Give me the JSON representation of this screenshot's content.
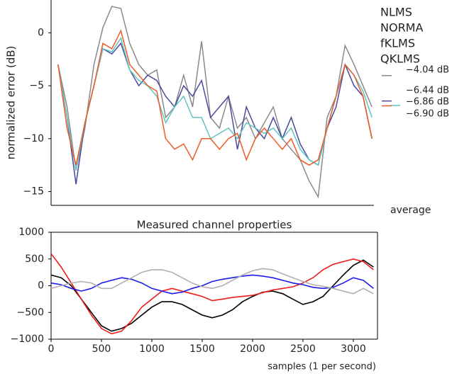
{
  "chart_data": [
    {
      "type": "line",
      "ylabel": "normalized error (dB)",
      "average_title": "average",
      "x": [
        70,
        160,
        250,
        340,
        430,
        520,
        610,
        700,
        790,
        880,
        970,
        1060,
        1150,
        1240,
        1330,
        1420,
        1510,
        1600,
        1690,
        1780,
        1870,
        1960,
        2050,
        2140,
        2230,
        2320,
        2410,
        2500,
        2590,
        2680,
        2770,
        2860,
        2950,
        3040,
        3130,
        3220
      ],
      "xlim": [
        0,
        3240
      ],
      "ylim": [
        -16.3,
        3.1
      ],
      "yticks": [
        0,
        {
          "value": -5,
          "label": "−5"
        },
        {
          "value": -10,
          "label": "−10"
        },
        {
          "value": -15,
          "label": "−15"
        }
      ],
      "series": [
        {
          "name": "NLMS",
          "color": "#8a8a8a",
          "average": -4.04,
          "average_label": "−4.04 dB",
          "values": [
            -3,
            -7,
            -13,
            -9,
            -3,
            0.5,
            2.5,
            2.3,
            -1,
            -3,
            -4,
            -3.5,
            -8,
            -7,
            -4,
            -7,
            -0.8,
            -8,
            -9,
            -6,
            -9,
            -8,
            -10,
            -8.5,
            -7,
            -10,
            -11,
            -12,
            -14,
            -15.5,
            -8,
            -6,
            -1.2,
            -3,
            -5,
            -7
          ]
        },
        {
          "name": "NORMA",
          "color": "#4a4a9e",
          "average": -6.44,
          "average_label": "−6.44 dB",
          "values": [
            -3,
            -8,
            -14.3,
            -8.5,
            -5,
            -1.5,
            -2,
            -1,
            -3.5,
            -5,
            -4,
            -4.5,
            -6,
            -7,
            -5,
            -6,
            -4.5,
            -8,
            -7,
            -6,
            -11,
            -7,
            -9,
            -10,
            -8,
            -10,
            -8,
            -10.5,
            -12,
            -12.5,
            -9,
            -7,
            -3,
            -5,
            -6,
            -10
          ]
        },
        {
          "name": "fKLMS",
          "color": "#62c6c0",
          "average": -6.86,
          "average_label": "−6.86 dB",
          "values": [
            -3,
            -8,
            -13,
            -8.5,
            -5,
            -1.5,
            -1.8,
            -0.5,
            -3.5,
            -4.5,
            -5,
            -6,
            -8.5,
            -7,
            -6,
            -8,
            -8,
            -10,
            -9.5,
            -9,
            -10,
            -8.5,
            -9,
            -9.5,
            -9,
            -10,
            -9,
            -11,
            -12,
            -12.5,
            -9,
            -6,
            -3,
            -4,
            -5.5,
            -8
          ]
        },
        {
          "name": "QKLMS",
          "color": "#ee5a28",
          "average": -6.9,
          "average_label": "−6.90 dB",
          "values": [
            -3,
            -9,
            -12.5,
            -8.5,
            -5,
            -1,
            -1.5,
            0.2,
            -3,
            -4,
            -5,
            -5.5,
            -10,
            -11,
            -10.5,
            -12,
            -10,
            -10,
            -11,
            -10,
            -9.5,
            -12,
            -10,
            -9,
            -10,
            -11,
            -10,
            -12,
            -12.5,
            -12,
            -9,
            -6,
            -3,
            -4,
            -6,
            -10
          ]
        }
      ]
    },
    {
      "type": "line",
      "title": "Measured channel properties",
      "xlabel": "samples (1 per second)",
      "x": [
        0,
        100,
        200,
        300,
        400,
        500,
        600,
        700,
        800,
        900,
        1000,
        1100,
        1200,
        1300,
        1400,
        1500,
        1600,
        1700,
        1800,
        1900,
        2000,
        2100,
        2200,
        2300,
        2400,
        2500,
        2600,
        2700,
        2800,
        2900,
        3000,
        3100,
        3200
      ],
      "xlim": [
        0,
        3240
      ],
      "xticks": [
        0,
        500,
        1000,
        1500,
        2000,
        2500,
        3000
      ],
      "ylim": [
        -1000,
        1000
      ],
      "yticks": [
        {
          "value": -1000,
          "label": "−1000"
        },
        {
          "value": -500,
          "label": "−500"
        },
        0,
        500,
        1000
      ],
      "series": [
        {
          "color": "#000000",
          "values": [
            200,
            150,
            0,
            -250,
            -500,
            -750,
            -850,
            -800,
            -700,
            -550,
            -400,
            -300,
            -300,
            -350,
            -450,
            -550,
            -600,
            -550,
            -450,
            -300,
            -200,
            -120,
            -100,
            -150,
            -250,
            -350,
            -300,
            -200,
            0,
            200,
            380,
            480,
            350
          ]
        },
        {
          "color": "#ee1c1c",
          "values": [
            600,
            350,
            50,
            -250,
            -550,
            -800,
            -900,
            -850,
            -650,
            -400,
            -250,
            -100,
            -50,
            -100,
            -150,
            -200,
            -280,
            -250,
            -220,
            -200,
            -180,
            -130,
            -80,
            -50,
            -20,
            50,
            150,
            300,
            400,
            450,
            500,
            450,
            300
          ]
        },
        {
          "color": "#1a1aee",
          "values": [
            50,
            20,
            -50,
            -100,
            -50,
            50,
            100,
            150,
            120,
            50,
            -50,
            -100,
            -150,
            -120,
            -50,
            0,
            80,
            120,
            150,
            180,
            200,
            180,
            150,
            100,
            50,
            20,
            -30,
            -50,
            -30,
            50,
            150,
            100,
            -50
          ]
        },
        {
          "color": "#b0b0b0",
          "values": [
            -50,
            0,
            50,
            80,
            50,
            -50,
            -50,
            50,
            150,
            250,
            300,
            300,
            250,
            150,
            50,
            -20,
            -50,
            0,
            100,
            200,
            280,
            320,
            300,
            220,
            150,
            80,
            20,
            -10,
            -50,
            -100,
            -150,
            -50,
            -150
          ]
        }
      ]
    }
  ]
}
